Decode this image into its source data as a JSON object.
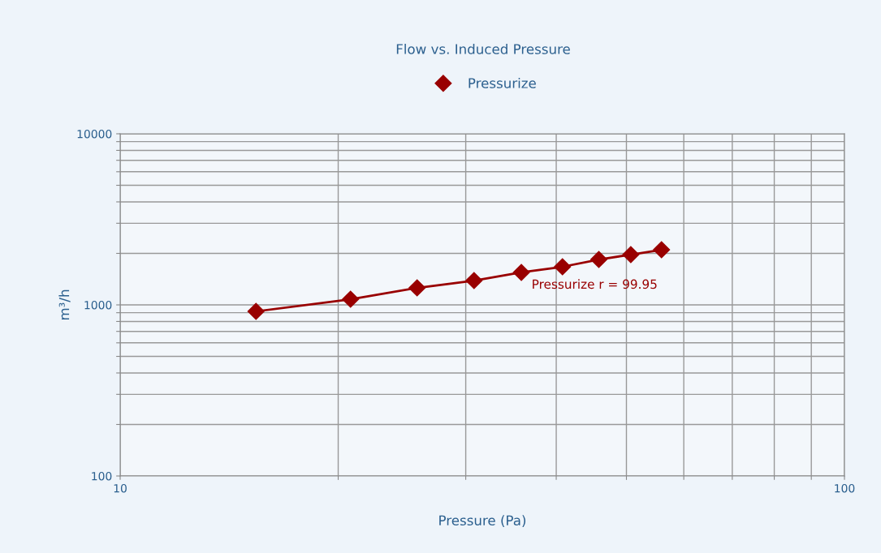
{
  "chart_data": {
    "type": "line",
    "title": "Flow vs. Induced Pressure",
    "xlabel": "Pressure (Pa)",
    "ylabel": "m³/h",
    "log": "xy",
    "x": [
      15.4,
      20.8,
      25.7,
      30.8,
      35.8,
      40.8,
      45.8,
      50.7,
      55.9
    ],
    "series": [
      {
        "name": "Pressurize",
        "color": "#990000",
        "values": [
          916,
          1079,
          1257,
          1387,
          1548,
          1670,
          1842,
          1967,
          2100
        ]
      }
    ],
    "xlim": [
      10,
      100
    ],
    "ylim": [
      100,
      10000
    ],
    "xticks": [
      10,
      {
        "value": 20,
        "label": null
      },
      {
        "value": 30,
        "label": null
      },
      {
        "value": 40,
        "label": null
      },
      {
        "value": 50,
        "label": null
      },
      {
        "value": 60,
        "label": null
      },
      {
        "value": 70,
        "label": null
      },
      {
        "value": 80,
        "label": null
      },
      {
        "value": 90,
        "label": null
      },
      100
    ],
    "yticks": [
      100,
      {
        "value": 200,
        "label": null
      },
      {
        "value": 300,
        "label": null
      },
      {
        "value": 400,
        "label": null
      },
      {
        "value": 500,
        "label": null
      },
      {
        "value": 600,
        "label": null
      },
      {
        "value": 700,
        "label": null
      },
      {
        "value": 800,
        "label": null
      },
      {
        "value": 900,
        "label": null
      },
      1000,
      {
        "value": 2000,
        "label": null
      },
      {
        "value": 3000,
        "label": null
      },
      {
        "value": 4000,
        "label": null
      },
      {
        "value": 5000,
        "label": null
      },
      {
        "value": 6000,
        "label": null
      },
      {
        "value": 7000,
        "label": null
      },
      {
        "value": 8000,
        "label": null
      },
      {
        "value": 9000,
        "label": null
      },
      10000
    ],
    "annotations": [
      "Pressurize r = 99.95"
    ],
    "grid": true,
    "legend": "top",
    "marker": "diamond",
    "line_style": "solid"
  }
}
